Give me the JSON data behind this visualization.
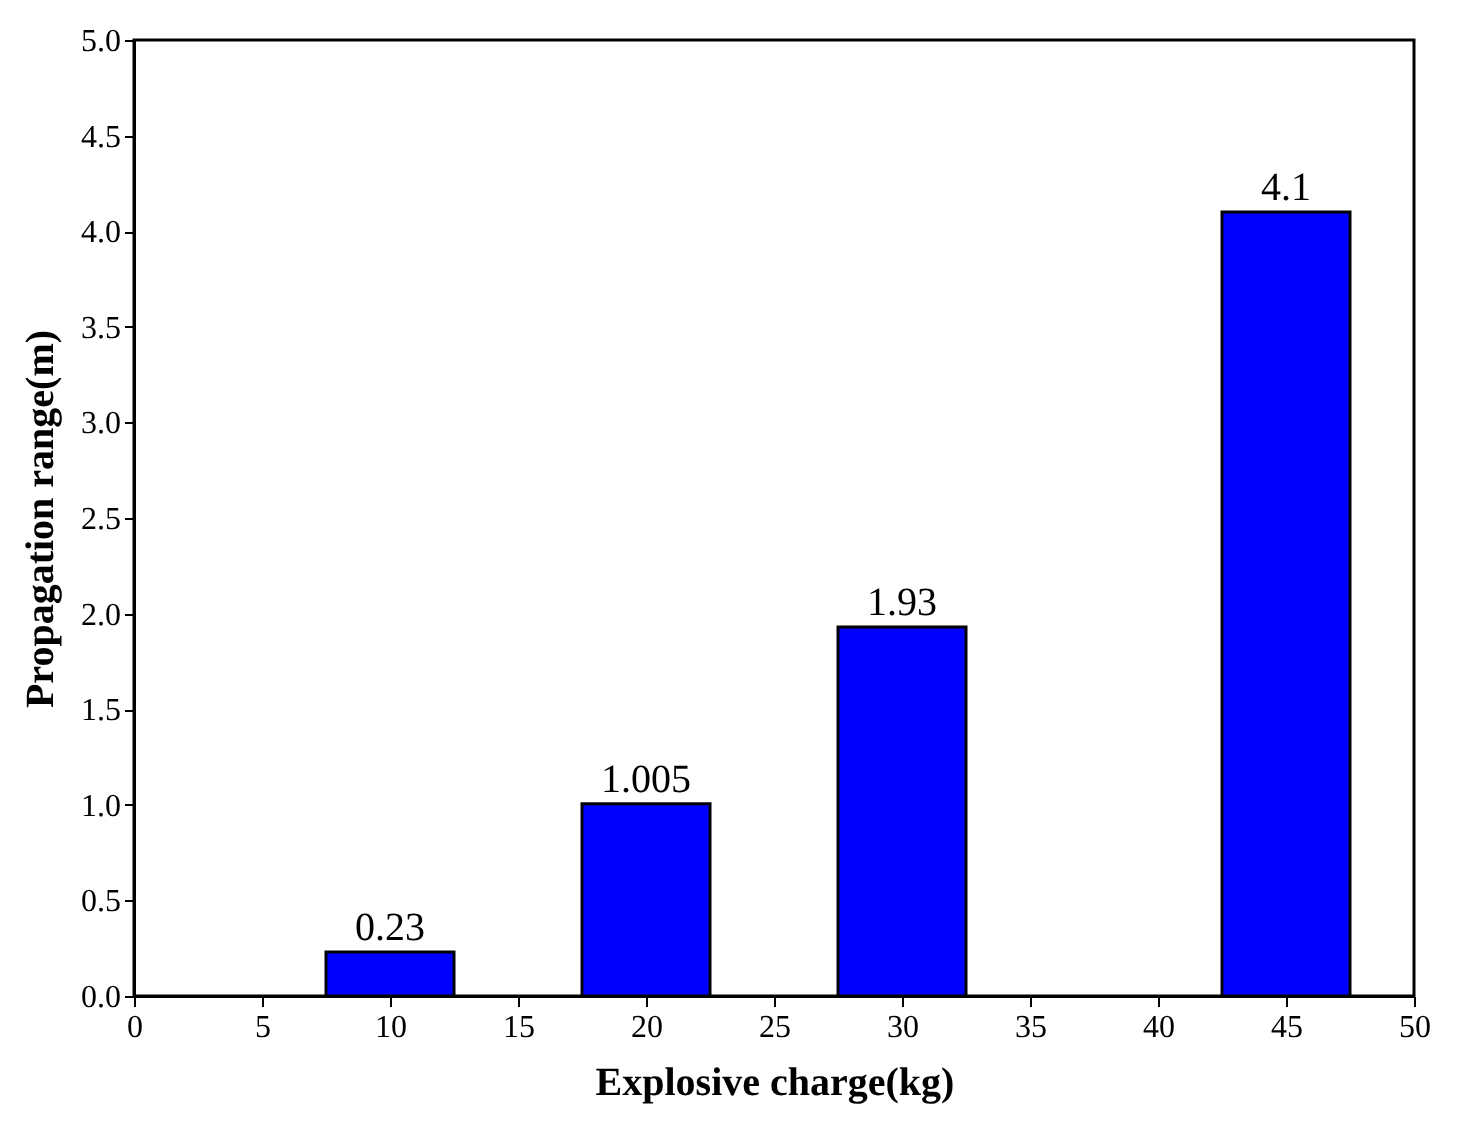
{
  "chart_data": {
    "type": "bar",
    "xlabel": "Explosive charge(kg)",
    "ylabel": "Propagation range(m)",
    "x": [
      10,
      20,
      30,
      45
    ],
    "values": [
      0.23,
      1.005,
      1.93,
      4.1
    ],
    "color": "#0000ff",
    "xlim": [
      0,
      50
    ],
    "xticks": [
      0,
      5,
      10,
      15,
      20,
      25,
      30,
      35,
      40,
      45,
      50
    ],
    "ylim": [
      0,
      5
    ],
    "yticks": [
      {
        "value": 0,
        "label": "0.0"
      },
      0.5,
      {
        "value": 1,
        "label": "1.0"
      },
      1.5,
      {
        "value": 2,
        "label": "2.0"
      },
      2.5,
      {
        "value": 3,
        "label": "3.0"
      },
      3.5,
      {
        "value": 4,
        "label": "4.0"
      },
      4.5,
      {
        "value": 5,
        "label": "5.0"
      }
    ],
    "data_labels": true,
    "grid": false
  }
}
